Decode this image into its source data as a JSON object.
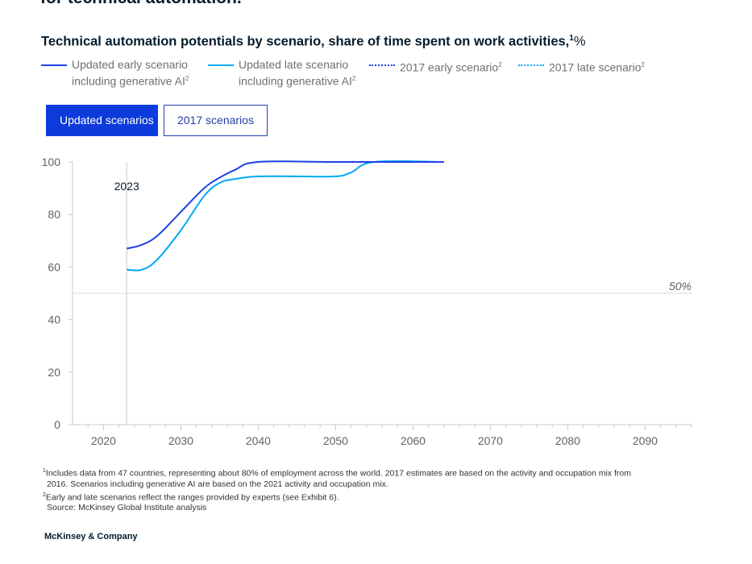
{
  "headline": "for technical automation.",
  "chart_title": {
    "main": "Technical automation potentials by scenario, share of time spent on work activities,",
    "sup": "1",
    "unit": "%"
  },
  "legend": [
    {
      "line1": "Updated early scenario",
      "line2": "including generative AI",
      "sup": "2",
      "color": "#1f40e6",
      "dash": false
    },
    {
      "line1": "Updated late scenario",
      "line2": "including generative AI",
      "sup": "2",
      "color": "#00a9f4",
      "dash": false
    },
    {
      "line1": "2017 early scenario",
      "line2": "",
      "sup": "2",
      "color": "#1f40e6",
      "dash": true
    },
    {
      "line1": "2017 late scenario",
      "line2": "",
      "sup": "2",
      "color": "#00a9f4",
      "dash": true
    }
  ],
  "toggle": {
    "active_label": "Updated scenarios",
    "inactive_label": "2017 scenarios"
  },
  "chart_data": {
    "type": "line",
    "title": "Technical automation potentials by scenario, share of time spent on work activities, %",
    "xlim": [
      2016,
      2096
    ],
    "ylim": [
      0,
      100
    ],
    "x_ticks": [
      2020,
      2030,
      2040,
      2050,
      2060,
      2070,
      2080,
      2090
    ],
    "y_ticks": [
      0,
      20,
      40,
      60,
      80,
      100
    ],
    "grid": false,
    "legend_position": "top",
    "annotations": {
      "vline": {
        "x": 2023,
        "label": "2023"
      },
      "hline": {
        "y": 50,
        "label": "50%"
      }
    },
    "series": [
      {
        "name": "Updated early scenario including generative AI",
        "color": "#1f40e6",
        "points": [
          [
            2023,
            67
          ],
          [
            2025,
            68.5
          ],
          [
            2027,
            72
          ],
          [
            2030,
            81
          ],
          [
            2033,
            90
          ],
          [
            2035,
            94
          ],
          [
            2037,
            97
          ],
          [
            2040,
            100
          ],
          [
            2050,
            100
          ],
          [
            2060,
            100
          ],
          [
            2064,
            100
          ]
        ]
      },
      {
        "name": "Updated late scenario including generative AI",
        "color": "#00a9f4",
        "points": [
          [
            2023,
            59
          ],
          [
            2025,
            59
          ],
          [
            2027,
            63
          ],
          [
            2030,
            74
          ],
          [
            2033,
            87
          ],
          [
            2035,
            92
          ],
          [
            2037,
            93.5
          ],
          [
            2040,
            94.5
          ],
          [
            2045,
            94.5
          ],
          [
            2050,
            94.5
          ],
          [
            2052,
            96
          ],
          [
            2055,
            100
          ],
          [
            2064,
            100
          ]
        ]
      }
    ]
  },
  "footnotes": [
    {
      "sup": "1",
      "text": "Includes data from 47 countries, representing about 80% of employment across the world. 2017 estimates are based on the activity and occupation mix from"
    },
    {
      "sup": "",
      "text": "2016. Scenarios including generative AI are based on the 2021 activity and occupation mix."
    },
    {
      "sup": "2",
      "text": "Early and late scenarios reflect the ranges provided by experts (see Exhibit 6)."
    },
    {
      "sup": "",
      "text": "Source: McKinsey Global Institute analysis"
    }
  ],
  "brand": "McKinsey & Company"
}
